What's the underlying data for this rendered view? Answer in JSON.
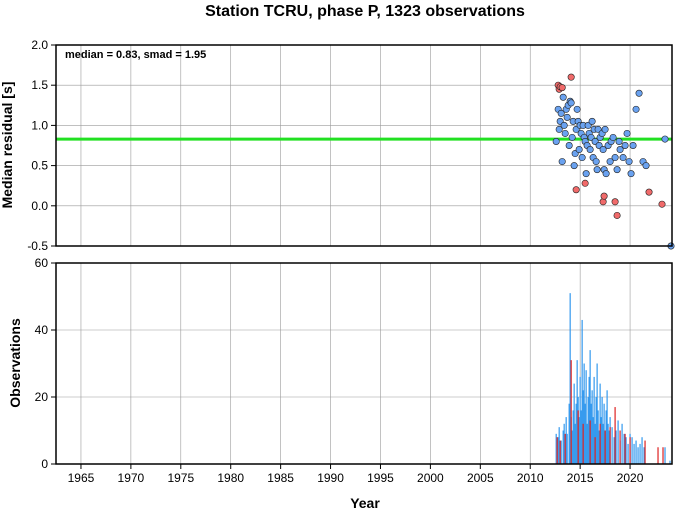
{
  "title": "Station TCRU, phase P, 1323 observations",
  "colors": {
    "median_line": "#22e022",
    "point_blue": "#6aa2f0",
    "point_red": "#f06a6a",
    "bar_blue": "#3399ee",
    "bar_red": "#dd2222",
    "grid": "#9a9a9a"
  },
  "chart_data": [
    {
      "type": "scatter",
      "ylabel": "Median residual [s]",
      "annotation": "median = 0.83, smad = 1.95",
      "median": 0.83,
      "xlim": [
        1962.5,
        2024.2
      ],
      "ylim": [
        -0.5,
        2.0
      ],
      "yticks": [
        "2.0",
        "1.5",
        "1.0",
        "0.5",
        "0.0",
        "-0.5"
      ],
      "grid": true,
      "series": [
        {
          "color": "blue",
          "points": [
            [
              2012.6,
              0.8
            ],
            [
              2012.8,
              1.2
            ],
            [
              2012.9,
              0.95
            ],
            [
              2013.0,
              1.05
            ],
            [
              2013.1,
              1.15
            ],
            [
              2013.2,
              0.55
            ],
            [
              2013.3,
              1.35
            ],
            [
              2013.4,
              1.0
            ],
            [
              2013.5,
              0.9
            ],
            [
              2013.6,
              1.2
            ],
            [
              2013.7,
              1.1
            ],
            [
              2013.8,
              1.25
            ],
            [
              2013.9,
              0.75
            ],
            [
              2014.0,
              1.3
            ],
            [
              2014.1,
              1.28
            ],
            [
              2014.2,
              0.85
            ],
            [
              2014.3,
              1.05
            ],
            [
              2014.4,
              0.5
            ],
            [
              2014.5,
              0.65
            ],
            [
              2014.6,
              0.95
            ],
            [
              2014.7,
              1.2
            ],
            [
              2014.8,
              1.05
            ],
            [
              2014.9,
              0.7
            ],
            [
              2015.0,
              1.0
            ],
            [
              2015.1,
              0.9
            ],
            [
              2015.2,
              0.6
            ],
            [
              2015.3,
              1.0
            ],
            [
              2015.4,
              0.85
            ],
            [
              2015.5,
              0.8
            ],
            [
              2015.6,
              0.4
            ],
            [
              2015.7,
              0.75
            ],
            [
              2015.8,
              1.0
            ],
            [
              2015.9,
              0.9
            ],
            [
              2016.0,
              0.7
            ],
            [
              2016.1,
              0.85
            ],
            [
              2016.2,
              1.05
            ],
            [
              2016.3,
              0.6
            ],
            [
              2016.4,
              0.95
            ],
            [
              2016.5,
              0.8
            ],
            [
              2016.6,
              0.55
            ],
            [
              2016.7,
              0.45
            ],
            [
              2016.8,
              0.95
            ],
            [
              2016.9,
              0.75
            ],
            [
              2017.0,
              0.85
            ],
            [
              2017.2,
              0.9
            ],
            [
              2017.3,
              0.7
            ],
            [
              2017.4,
              0.45
            ],
            [
              2017.5,
              0.95
            ],
            [
              2017.6,
              0.4
            ],
            [
              2017.8,
              0.75
            ],
            [
              2018.0,
              0.55
            ],
            [
              2018.1,
              0.8
            ],
            [
              2018.3,
              0.85
            ],
            [
              2018.5,
              0.6
            ],
            [
              2018.7,
              0.45
            ],
            [
              2018.9,
              0.8
            ],
            [
              2019.0,
              0.7
            ],
            [
              2019.3,
              0.6
            ],
            [
              2019.5,
              0.75
            ],
            [
              2019.7,
              0.9
            ],
            [
              2019.9,
              0.55
            ],
            [
              2020.1,
              0.4
            ],
            [
              2020.3,
              0.75
            ],
            [
              2020.6,
              1.2
            ],
            [
              2020.9,
              1.4
            ],
            [
              2021.3,
              0.55
            ],
            [
              2021.6,
              0.5
            ],
            [
              2023.5,
              0.83
            ],
            [
              2024.1,
              -0.5
            ]
          ]
        },
        {
          "color": "red",
          "points": [
            [
              2012.8,
              1.5
            ],
            [
              2012.9,
              1.45
            ],
            [
              2013.0,
              1.48
            ],
            [
              2013.2,
              1.47
            ],
            [
              2014.1,
              1.6
            ],
            [
              2014.6,
              0.2
            ],
            [
              2015.5,
              0.28
            ],
            [
              2017.3,
              0.05
            ],
            [
              2017.4,
              0.12
            ],
            [
              2018.5,
              0.05
            ],
            [
              2018.7,
              -0.12
            ],
            [
              2021.9,
              0.17
            ],
            [
              2023.2,
              0.02
            ]
          ]
        }
      ]
    },
    {
      "type": "bar",
      "xlabel": "Year",
      "ylabel": "Observations",
      "xlim": [
        1962.5,
        2024.2
      ],
      "ylim": [
        0,
        60
      ],
      "yticks": [
        "60",
        "40",
        "20",
        "0"
      ],
      "xticks": [
        "1965",
        "1970",
        "1975",
        "1980",
        "1985",
        "1990",
        "1995",
        "2000",
        "2005",
        "2010",
        "2015",
        "2020"
      ],
      "grid": true,
      "blue_bars": [
        [
          2012.6,
          9
        ],
        [
          2012.8,
          8
        ],
        [
          2012.9,
          11
        ],
        [
          2013.1,
          7
        ],
        [
          2013.3,
          10
        ],
        [
          2013.4,
          12
        ],
        [
          2013.6,
          14
        ],
        [
          2013.7,
          9
        ],
        [
          2013.9,
          18
        ],
        [
          2014.0,
          51
        ],
        [
          2014.1,
          14
        ],
        [
          2014.2,
          10
        ],
        [
          2014.3,
          16
        ],
        [
          2014.4,
          24
        ],
        [
          2014.5,
          12
        ],
        [
          2014.6,
          18
        ],
        [
          2014.7,
          31
        ],
        [
          2014.8,
          20
        ],
        [
          2014.9,
          14
        ],
        [
          2015.0,
          26
        ],
        [
          2015.1,
          16
        ],
        [
          2015.2,
          43
        ],
        [
          2015.3,
          22
        ],
        [
          2015.4,
          30
        ],
        [
          2015.5,
          18
        ],
        [
          2015.6,
          28
        ],
        [
          2015.7,
          12
        ],
        [
          2015.8,
          20
        ],
        [
          2015.9,
          26
        ],
        [
          2016.0,
          34
        ],
        [
          2016.1,
          18
        ],
        [
          2016.2,
          22
        ],
        [
          2016.3,
          14
        ],
        [
          2016.4,
          26
        ],
        [
          2016.5,
          12
        ],
        [
          2016.6,
          20
        ],
        [
          2016.7,
          30
        ],
        [
          2016.8,
          16
        ],
        [
          2016.9,
          10
        ],
        [
          2017.0,
          24
        ],
        [
          2017.1,
          14
        ],
        [
          2017.2,
          20
        ],
        [
          2017.3,
          12
        ],
        [
          2017.4,
          18
        ],
        [
          2017.5,
          10
        ],
        [
          2017.6,
          16
        ],
        [
          2017.7,
          22
        ],
        [
          2017.8,
          12
        ],
        [
          2017.9,
          10
        ],
        [
          2018.0,
          14
        ],
        [
          2018.2,
          11
        ],
        [
          2018.4,
          8
        ],
        [
          2018.6,
          10
        ],
        [
          2018.8,
          13
        ],
        [
          2019.0,
          7
        ],
        [
          2019.2,
          12
        ],
        [
          2019.4,
          9
        ],
        [
          2019.6,
          8
        ],
        [
          2019.8,
          6
        ],
        [
          2020.0,
          9
        ],
        [
          2020.2,
          8
        ],
        [
          2020.4,
          6
        ],
        [
          2020.6,
          7
        ],
        [
          2020.8,
          5
        ],
        [
          2021.0,
          6
        ],
        [
          2021.2,
          8
        ],
        [
          2021.4,
          5
        ],
        [
          2023.5,
          5
        ],
        [
          2024.0,
          1
        ]
      ],
      "red_bars": [
        [
          2012.7,
          8
        ],
        [
          2013.0,
          7
        ],
        [
          2013.5,
          9
        ],
        [
          2014.1,
          31
        ],
        [
          2014.8,
          16
        ],
        [
          2015.3,
          12
        ],
        [
          2016.0,
          13
        ],
        [
          2016.5,
          8
        ],
        [
          2017.0,
          12
        ],
        [
          2017.5,
          10
        ],
        [
          2018.0,
          11
        ],
        [
          2018.5,
          17
        ],
        [
          2019.0,
          10
        ],
        [
          2019.5,
          9
        ],
        [
          2020.0,
          8
        ],
        [
          2021.5,
          7
        ],
        [
          2022.8,
          5
        ],
        [
          2023.3,
          5
        ]
      ]
    }
  ]
}
